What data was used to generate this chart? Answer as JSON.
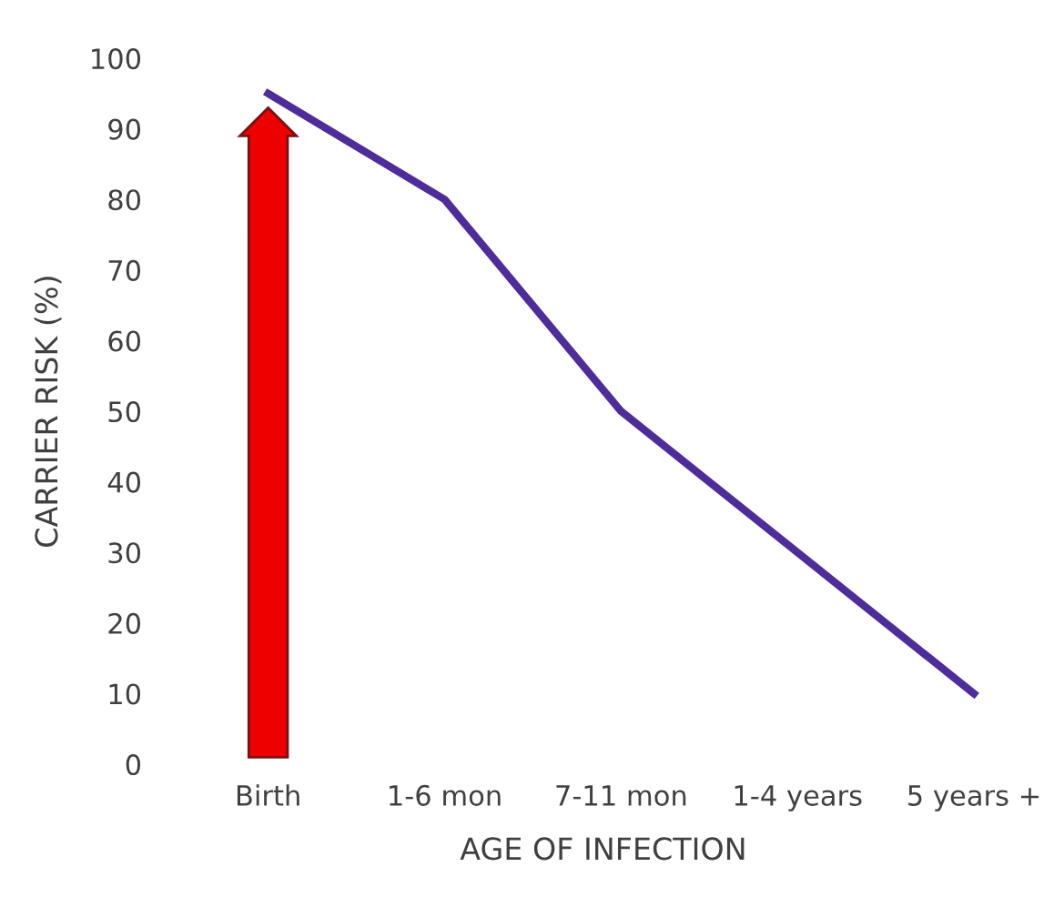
{
  "chart_data": {
    "type": "line",
    "xlabel": "AGE OF INFECTION",
    "ylabel": "CARRIER RISK (%)",
    "categories": [
      "Birth",
      "1-6 mon",
      "7-11 mon",
      "1-4 years",
      "5 years +"
    ],
    "series": [
      {
        "color": "#4e2d9b",
        "values": [
          95,
          80,
          50,
          30,
          10
        ]
      }
    ],
    "ylim": [
      0,
      100
    ],
    "yticks": [
      0,
      10,
      20,
      30,
      40,
      50,
      60,
      70,
      80,
      90,
      100
    ],
    "grid": false,
    "legend": false,
    "marker": "none",
    "line_style": "solid"
  }
}
